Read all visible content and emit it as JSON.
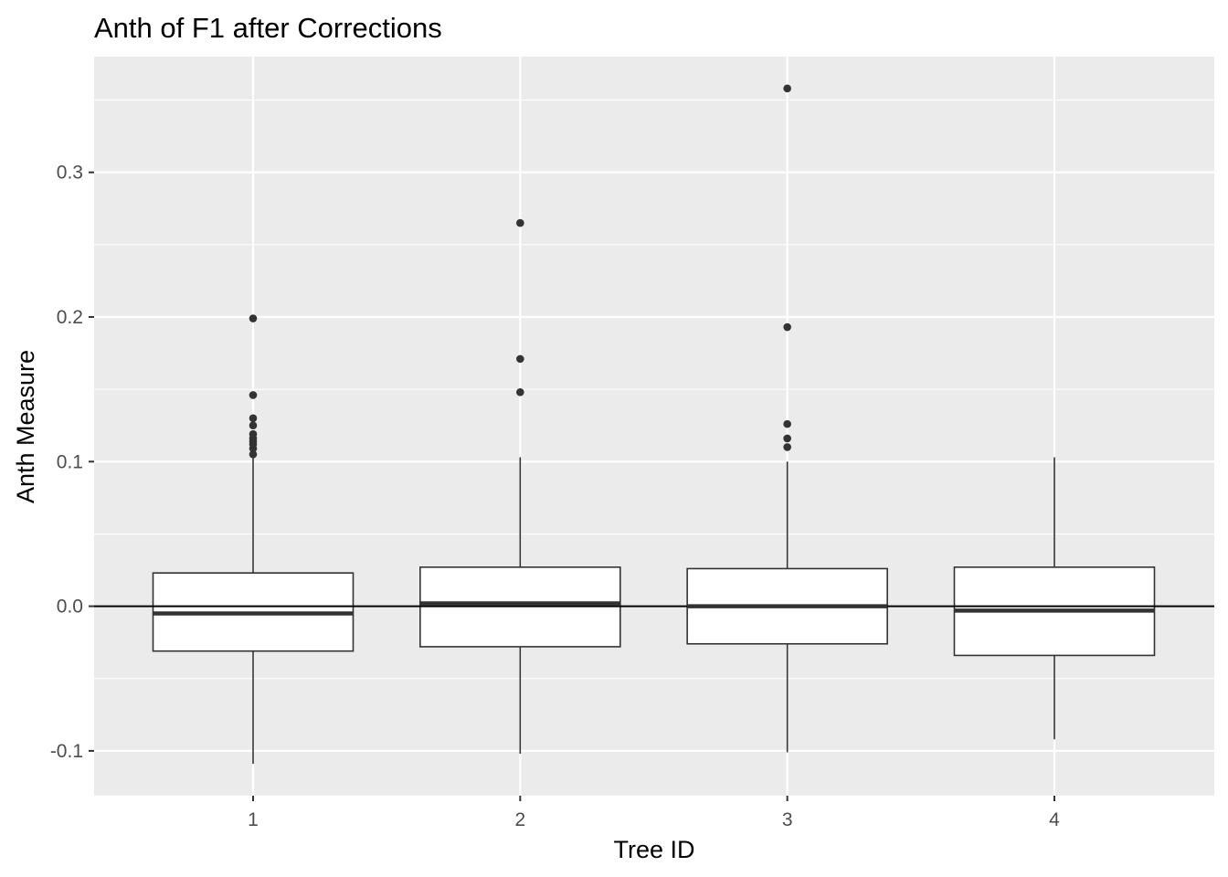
{
  "chart_data": {
    "type": "boxplot",
    "title": "Anth of F1 after Corrections",
    "xlabel": "Tree ID",
    "ylabel": "Anth Measure",
    "categories": [
      "1",
      "2",
      "3",
      "4"
    ],
    "y_ticks": [
      -0.1,
      0.0,
      0.1,
      0.2,
      0.3
    ],
    "y_tick_labels": [
      "-0.1",
      "0.0",
      "0.1",
      "0.2",
      "0.3"
    ],
    "ylim": [
      -0.131,
      0.38
    ],
    "reference_line_y": 0.0,
    "grid": true,
    "boxes": [
      {
        "category": "1",
        "lower_whisker": -0.109,
        "q1": -0.031,
        "median": -0.005,
        "q3": 0.023,
        "upper_whisker": 0.1035,
        "outliers": [
          0.105,
          0.109,
          0.112,
          0.114,
          0.116,
          0.119,
          0.125,
          0.13,
          0.146,
          0.199
        ]
      },
      {
        "category": "2",
        "lower_whisker": -0.102,
        "q1": -0.028,
        "median": 0.002,
        "q3": 0.027,
        "upper_whisker": 0.103,
        "outliers": [
          0.148,
          0.171,
          0.265
        ]
      },
      {
        "category": "3",
        "lower_whisker": -0.101,
        "q1": -0.026,
        "median": 0.0,
        "q3": 0.026,
        "upper_whisker": 0.1,
        "outliers": [
          0.11,
          0.116,
          0.126,
          0.193,
          0.358
        ]
      },
      {
        "category": "4",
        "lower_whisker": -0.092,
        "q1": -0.034,
        "median": -0.003,
        "q3": 0.027,
        "upper_whisker": 0.103,
        "outliers": []
      }
    ],
    "colors": {
      "panel_background": "#ebebeb",
      "grid_major": "#ffffff",
      "box_fill": "#ffffff",
      "box_line": "#333333",
      "outlier": "#333333",
      "reference_line": "#000000"
    }
  }
}
